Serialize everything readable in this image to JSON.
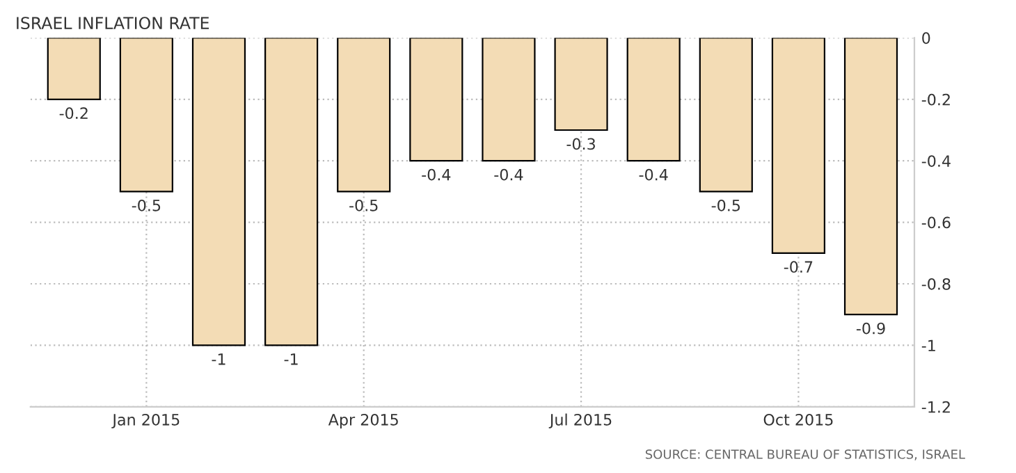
{
  "chart_data": {
    "type": "bar",
    "title": "ISRAEL INFLATION RATE",
    "categories": [
      null,
      "Jan 2015",
      null,
      null,
      "Apr 2015",
      null,
      null,
      "Jul 2015",
      null,
      null,
      "Oct 2015",
      null
    ],
    "values": [
      -0.2,
      -0.5,
      -1,
      -1,
      -0.5,
      -0.4,
      -0.4,
      -0.3,
      -0.4,
      -0.5,
      -0.7,
      -0.9
    ],
    "color": "#f3dcb5",
    "data_labels": true,
    "ylim": [
      -1.2,
      0
    ],
    "yticks": [
      0,
      -0.2,
      -0.4,
      -0.6,
      -0.8,
      -1,
      -1.2
    ],
    "grid": true,
    "annotations": [
      "SOURCE: CENTRAL BUREAU OF STATISTICS, ISRAEL"
    ]
  }
}
